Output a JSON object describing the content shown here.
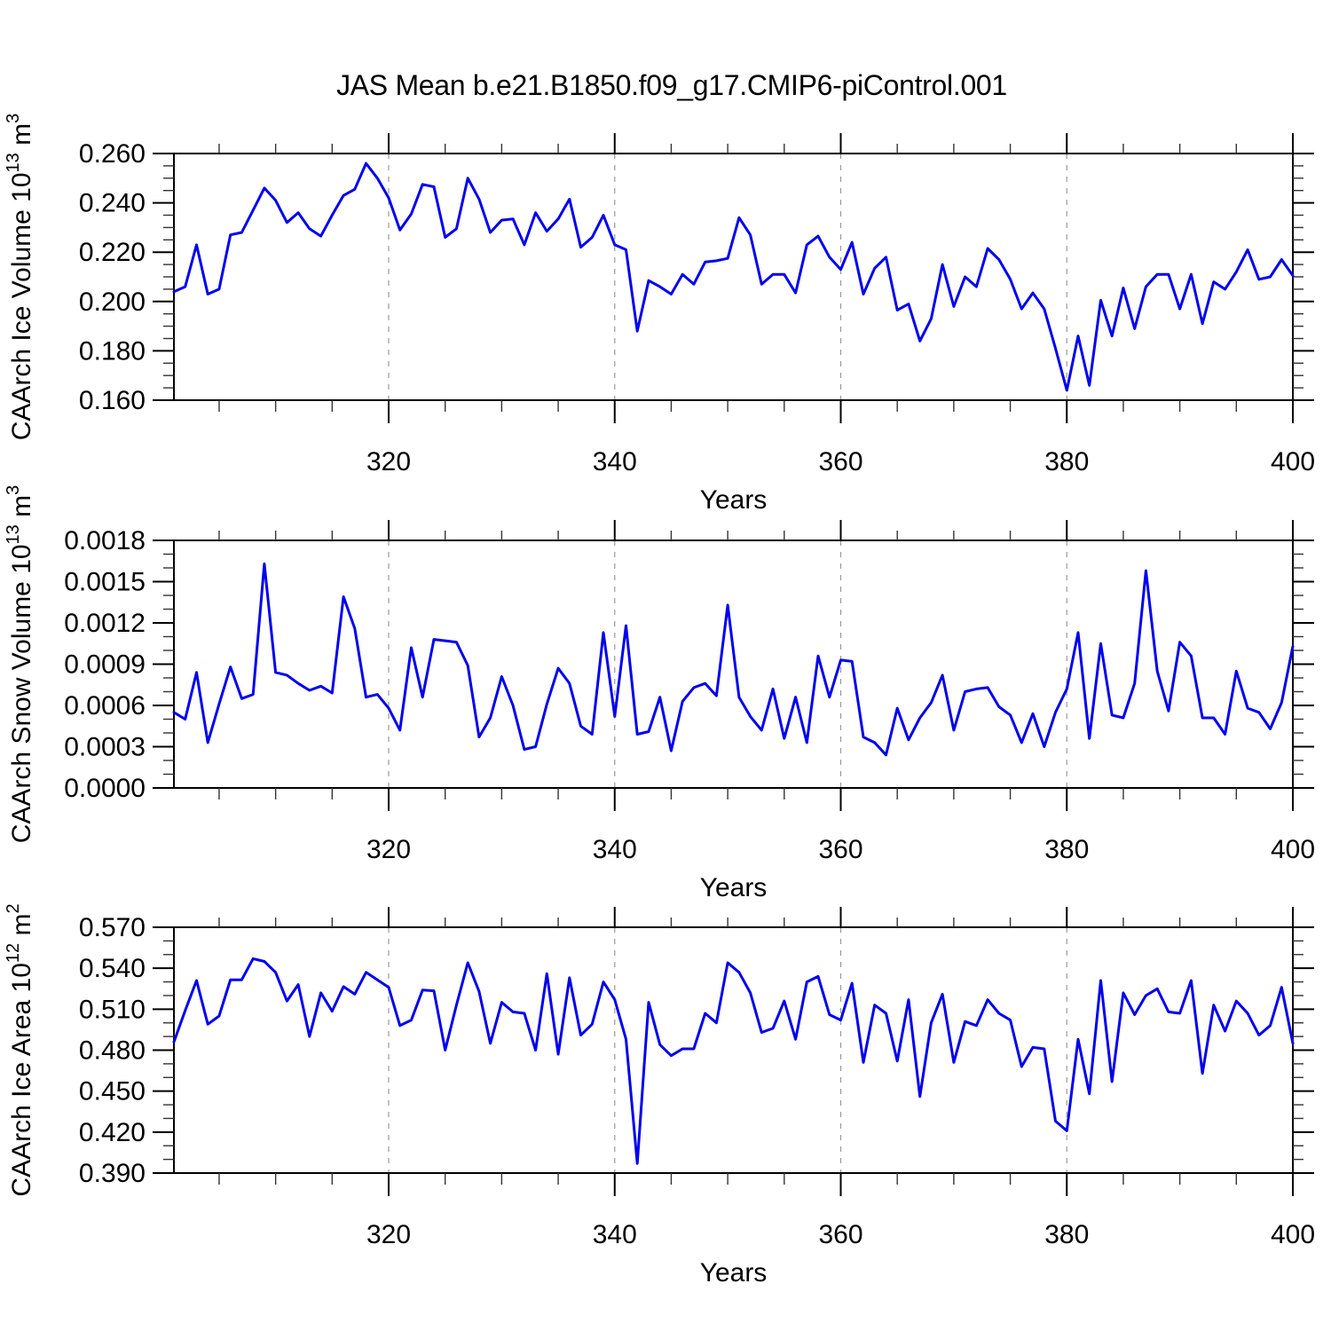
{
  "title": "JAS Mean b.e21.B1850.f09_g17.CMIP6-piControl.001",
  "line_color": "#0000ee",
  "axis_color": "#000000",
  "grid_color": "#999999",
  "xlabel": "Years",
  "chart_data": [
    {
      "type": "line",
      "name": "ice-volume",
      "ylabel_text": "CAArch Ice Volume 10^13 m^3",
      "ylabel_parts": [
        {
          "t": "CAArch Ice Volume 10"
        },
        {
          "t": "13",
          "sup": true
        },
        {
          "t": " m"
        },
        {
          "t": "3",
          "sup": true
        }
      ],
      "xlabel": "Years",
      "xlim": [
        301,
        400
      ],
      "ylim": [
        0.16,
        0.26
      ],
      "ytick": 0.02,
      "yminor": 0.005,
      "ydecimals": 3,
      "xticks": [
        320,
        340,
        360,
        380,
        400
      ],
      "xminor_step": 5,
      "gridlines_at": [
        320,
        340,
        360,
        380
      ],
      "x_start": 301,
      "x_step": 1,
      "values": [
        0.204,
        0.206,
        0.223,
        0.203,
        0.205,
        0.227,
        0.228,
        0.237,
        0.246,
        0.241,
        0.232,
        0.236,
        0.2295,
        0.2265,
        0.235,
        0.243,
        0.2455,
        0.256,
        0.25,
        0.242,
        0.229,
        0.2355,
        0.2475,
        0.2465,
        0.226,
        0.2295,
        0.25,
        0.2415,
        0.228,
        0.233,
        0.2335,
        0.223,
        0.236,
        0.2285,
        0.2335,
        0.2415,
        0.222,
        0.226,
        0.235,
        0.223,
        0.221,
        0.188,
        0.2085,
        0.206,
        0.203,
        0.211,
        0.207,
        0.216,
        0.2165,
        0.2175,
        0.234,
        0.227,
        0.207,
        0.211,
        0.211,
        0.2035,
        0.223,
        0.2265,
        0.218,
        0.213,
        0.224,
        0.203,
        0.2135,
        0.218,
        0.1965,
        0.199,
        0.184,
        0.193,
        0.215,
        0.198,
        0.21,
        0.206,
        0.2215,
        0.217,
        0.209,
        0.197,
        0.2035,
        0.197,
        0.181,
        0.164,
        0.186,
        0.166,
        0.2005,
        0.186,
        0.2055,
        0.189,
        0.206,
        0.211,
        0.211,
        0.197,
        0.211,
        0.191,
        0.208,
        0.205,
        0.212,
        0.221,
        0.209,
        0.21,
        0.217,
        0.2105
      ]
    },
    {
      "type": "line",
      "name": "snow-volume",
      "ylabel_text": "CAArch Snow Volume 10^13 m^3",
      "ylabel_parts": [
        {
          "t": "CAArch Snow Volume 10"
        },
        {
          "t": "13",
          "sup": true
        },
        {
          "t": " m"
        },
        {
          "t": "3",
          "sup": true
        }
      ],
      "xlabel": "Years",
      "xlim": [
        301,
        400
      ],
      "ylim": [
        0.0,
        0.0018
      ],
      "ytick": 0.0003,
      "yminor": 0.0001,
      "ydecimals": 4,
      "xticks": [
        320,
        340,
        360,
        380,
        400
      ],
      "xminor_step": 5,
      "gridlines_at": [
        320,
        340,
        360,
        380
      ],
      "x_start": 301,
      "x_step": 1,
      "values": [
        0.00055,
        0.0005,
        0.00084,
        0.00033,
        0.00061,
        0.00088,
        0.00065,
        0.00068,
        0.00163,
        0.00084,
        0.00082,
        0.00076,
        0.00071,
        0.00074,
        0.00069,
        0.00139,
        0.00116,
        0.00066,
        0.00068,
        0.00058,
        0.00042,
        0.00102,
        0.00066,
        0.00108,
        0.00107,
        0.00106,
        0.00089,
        0.00037,
        0.00051,
        0.00081,
        0.0006,
        0.00028,
        0.0003,
        0.00061,
        0.00087,
        0.00076,
        0.00045,
        0.00039,
        0.00113,
        0.00052,
        0.00118,
        0.00039,
        0.00041,
        0.00066,
        0.00027,
        0.00063,
        0.00073,
        0.00076,
        0.00067,
        0.00133,
        0.00066,
        0.00052,
        0.00042,
        0.00072,
        0.00036,
        0.00066,
        0.00033,
        0.00096,
        0.00066,
        0.00093,
        0.00092,
        0.00037,
        0.00033,
        0.00024,
        0.00058,
        0.00035,
        0.00051,
        0.00062,
        0.00082,
        0.00042,
        0.0007,
        0.00072,
        0.00073,
        0.00059,
        0.00053,
        0.00033,
        0.00054,
        0.0003,
        0.00055,
        0.00072,
        0.00113,
        0.00036,
        0.00105,
        0.00053,
        0.00051,
        0.00076,
        0.00158,
        0.00085,
        0.00056,
        0.00106,
        0.00096,
        0.00051,
        0.00051,
        0.00039,
        0.00085,
        0.00058,
        0.00055,
        0.00043,
        0.00062,
        0.00103
      ]
    },
    {
      "type": "line",
      "name": "ice-area",
      "ylabel_text": "CAArch Ice Area 10^12 m^2",
      "ylabel_parts": [
        {
          "t": "CAArch Ice Area 10"
        },
        {
          "t": "12",
          "sup": true
        },
        {
          "t": " m"
        },
        {
          "t": "2",
          "sup": true
        }
      ],
      "xlabel": "Years",
      "xlim": [
        301,
        400
      ],
      "ylim": [
        0.39,
        0.57
      ],
      "ytick": 0.03,
      "yminor": 0.01,
      "ydecimals": 3,
      "xticks": [
        320,
        340,
        360,
        380,
        400
      ],
      "xminor_step": 5,
      "gridlines_at": [
        320,
        340,
        360,
        380
      ],
      "x_start": 301,
      "x_step": 1,
      "values": [
        0.486,
        0.509,
        0.531,
        0.499,
        0.505,
        0.5315,
        0.5315,
        0.547,
        0.545,
        0.537,
        0.516,
        0.528,
        0.49,
        0.522,
        0.5085,
        0.5265,
        0.521,
        0.537,
        0.5315,
        0.526,
        0.498,
        0.502,
        0.524,
        0.5235,
        0.48,
        0.513,
        0.544,
        0.523,
        0.485,
        0.515,
        0.508,
        0.507,
        0.48,
        0.536,
        0.477,
        0.533,
        0.491,
        0.499,
        0.53,
        0.517,
        0.488,
        0.397,
        0.515,
        0.484,
        0.476,
        0.481,
        0.481,
        0.507,
        0.5,
        0.544,
        0.537,
        0.522,
        0.493,
        0.496,
        0.516,
        0.488,
        0.53,
        0.534,
        0.506,
        0.502,
        0.529,
        0.471,
        0.513,
        0.507,
        0.472,
        0.517,
        0.446,
        0.5,
        0.521,
        0.471,
        0.501,
        0.498,
        0.517,
        0.507,
        0.502,
        0.468,
        0.482,
        0.481,
        0.428,
        0.421,
        0.488,
        0.448,
        0.531,
        0.457,
        0.522,
        0.506,
        0.52,
        0.525,
        0.508,
        0.507,
        0.531,
        0.463,
        0.513,
        0.494,
        0.516,
        0.507,
        0.491,
        0.498,
        0.526,
        0.485
      ]
    }
  ]
}
